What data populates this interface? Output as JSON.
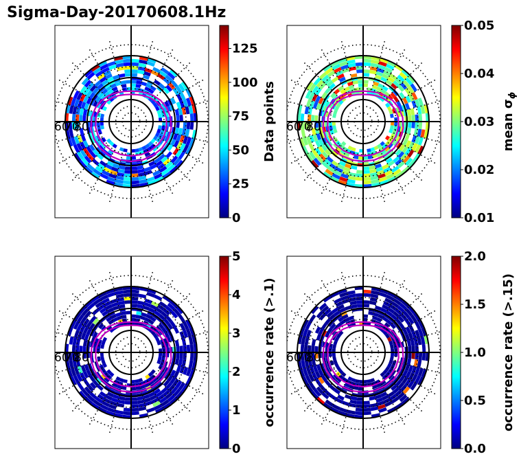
{
  "figure_title": "Sigma-Day-20170608.1Hz",
  "colors": {
    "dial_line": "#000000",
    "oval": "#c000c0",
    "jet_stops": [
      "#00007f",
      "#0000ff",
      "#007fff",
      "#00ffff",
      "#7fff7f",
      "#ffff00",
      "#ff7f00",
      "#ff0000",
      "#7f0000"
    ]
  },
  "chart_data": [
    {
      "type": "heatmap",
      "projection": "polar-dial",
      "ring_labels": [
        "60",
        "70",
        "80"
      ],
      "colorbar": {
        "label": "Data points",
        "range": [
          0,
          142
        ],
        "ticks": [
          "0",
          "25",
          "50",
          "75",
          "100",
          "125"
        ],
        "tick_values": [
          0,
          25,
          50,
          75,
          100,
          125
        ]
      },
      "pattern": "data"
    },
    {
      "type": "heatmap",
      "projection": "polar-dial",
      "ring_labels": [
        "60",
        "70",
        "80"
      ],
      "colorbar": {
        "label": "mean σ",
        "label_subscript": "ϕ",
        "range": [
          0.01,
          0.05
        ],
        "ticks": [
          "0.01",
          "0.02",
          "0.03",
          "0.04",
          "0.05"
        ],
        "tick_values": [
          0.01,
          0.02,
          0.03,
          0.04,
          0.05
        ]
      },
      "pattern": "sigma"
    },
    {
      "type": "heatmap",
      "projection": "polar-dial",
      "ring_labels": [
        "60",
        "70",
        "80"
      ],
      "colorbar": {
        "label": "occurrence rate (>.1)",
        "range": [
          0,
          5
        ],
        "ticks": [
          "0",
          "1",
          "2",
          "3",
          "4",
          "5"
        ],
        "tick_values": [
          0,
          1,
          2,
          3,
          4,
          5
        ]
      },
      "pattern": "occ1"
    },
    {
      "type": "heatmap",
      "projection": "polar-dial",
      "ring_labels": [
        "60",
        "70",
        "80"
      ],
      "colorbar": {
        "label": "occurrence rate (>.15)",
        "range": [
          0,
          2
        ],
        "ticks": [
          "0.0",
          "0.5",
          "1.0",
          "1.5",
          "2.0"
        ],
        "tick_values": [
          0,
          0.5,
          1.0,
          1.5,
          2.0
        ]
      },
      "pattern": "occ15"
    }
  ]
}
